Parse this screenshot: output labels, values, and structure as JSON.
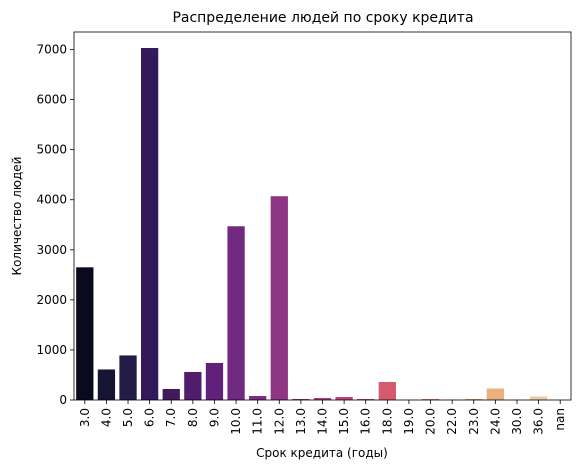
{
  "chart_data": {
    "type": "bar",
    "title": "Распределение людей по сроку кредита",
    "xlabel": "Срок кредита (годы)",
    "ylabel": "Количество людей",
    "categories": [
      "3.0",
      "4.0",
      "5.0",
      "6.0",
      "7.0",
      "8.0",
      "9.0",
      "10.0",
      "11.0",
      "12.0",
      "13.0",
      "14.0",
      "15.0",
      "16.0",
      "18.0",
      "19.0",
      "20.0",
      "22.0",
      "23.0",
      "24.0",
      "30.0",
      "36.0",
      "nan"
    ],
    "values": [
      2650,
      610,
      890,
      7030,
      220,
      560,
      740,
      3470,
      80,
      4070,
      20,
      40,
      60,
      20,
      360,
      5,
      20,
      10,
      20,
      230,
      5,
      70,
      5
    ],
    "colors": [
      "#0a0a1e",
      "#151432",
      "#231c46",
      "#33185c",
      "#43195e",
      "#521c6d",
      "#61207c",
      "#702a80",
      "#7f2d82",
      "#8e3683",
      "#9d3a82",
      "#ab3f7f",
      "#ba4478",
      "#c84a74",
      "#d45a6e",
      "#de6a6b",
      "#e77b6c",
      "#ed8d72",
      "#f19e7c",
      "#eab07f",
      "#f2c49a",
      "#eccba8",
      "#f7dcc0"
    ],
    "ylim": [
      0,
      7350
    ],
    "yticks": [
      0,
      1000,
      2000,
      3000,
      4000,
      5000,
      6000,
      7000
    ],
    "grid": false
  }
}
